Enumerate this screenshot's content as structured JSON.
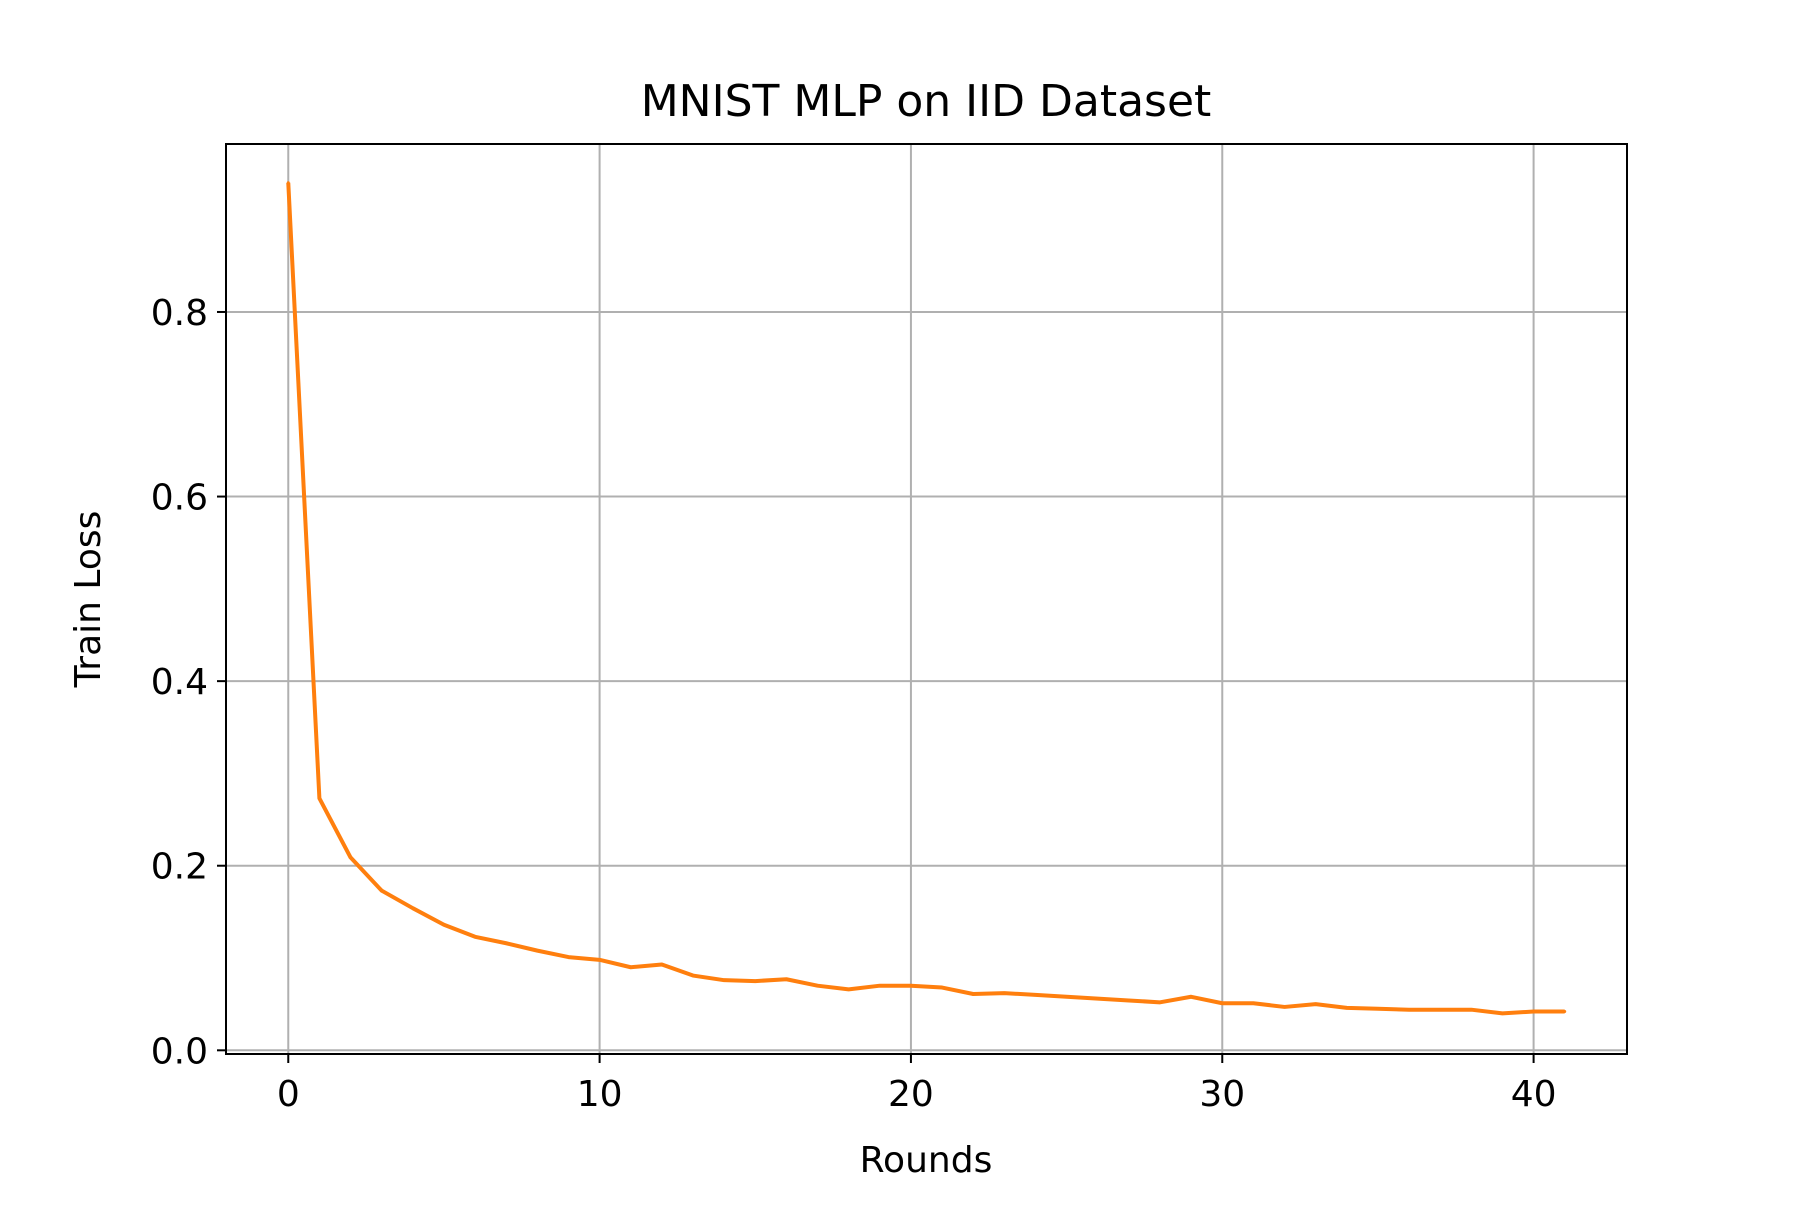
{
  "chart_data": {
    "type": "line",
    "title": "MNIST MLP on IID Dataset",
    "xlabel": "Rounds",
    "ylabel": "Train Loss",
    "xlim": [
      -2,
      43
    ],
    "ylim": [
      -0.004,
      0.982
    ],
    "xticks": [
      0,
      10,
      20,
      30,
      40
    ],
    "yticks": [
      0.0,
      0.2,
      0.4,
      0.6,
      0.8
    ],
    "xtick_labels": [
      "0",
      "10",
      "20",
      "30",
      "40"
    ],
    "ytick_labels": [
      "0.0",
      "0.2",
      "0.4",
      "0.6",
      "0.8"
    ],
    "grid": true,
    "legend": false,
    "series": [
      {
        "color": "#ff7f0e",
        "x": [
          0,
          1,
          2,
          3,
          4,
          5,
          6,
          7,
          8,
          9,
          10,
          11,
          12,
          13,
          14,
          15,
          16,
          17,
          18,
          19,
          20,
          21,
          22,
          23,
          24,
          25,
          26,
          27,
          28,
          29,
          30,
          31,
          32,
          33,
          34,
          35,
          36,
          37,
          38,
          39,
          40,
          41
        ],
        "y": [
          0.94,
          0.273,
          0.209,
          0.173,
          0.154,
          0.136,
          0.123,
          0.116,
          0.108,
          0.101,
          0.098,
          0.09,
          0.093,
          0.081,
          0.076,
          0.075,
          0.077,
          0.07,
          0.066,
          0.07,
          0.07,
          0.068,
          0.061,
          0.062,
          0.06,
          0.058,
          0.056,
          0.054,
          0.052,
          0.058,
          0.051,
          0.051,
          0.047,
          0.05,
          0.046,
          0.045,
          0.044,
          0.044,
          0.044,
          0.04,
          0.042,
          0.042
        ]
      }
    ]
  },
  "colors": {
    "line": "#ff7f0e",
    "grid": "#b0b0b0",
    "axes": "#000000",
    "background": "#ffffff"
  }
}
